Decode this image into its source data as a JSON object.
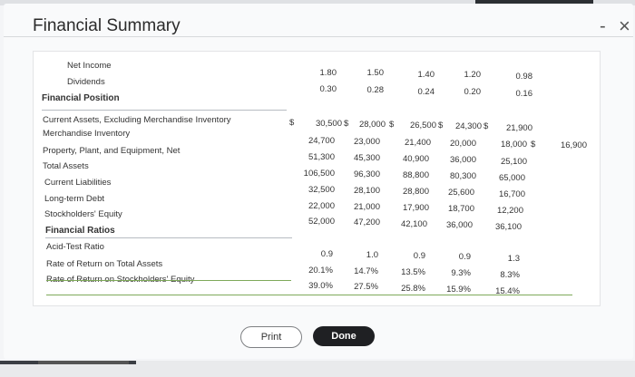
{
  "window": {
    "title": "Financial Summary",
    "minimize_label": "-",
    "close_label": "×"
  },
  "rows": [
    {
      "label": "Net Income",
      "values": [
        "1.80",
        "1.50",
        "1.40",
        "1.20",
        "0.98"
      ]
    },
    {
      "label": "Dividends",
      "values": [
        "0.30",
        "0.28",
        "0.24",
        "0.20",
        "0.16"
      ]
    },
    {
      "label": "Financial Position",
      "values": []
    },
    {
      "label": "Current Assets, Excluding Merchandise Inventory",
      "values": [
        "30,500",
        "28,000",
        "26,500",
        "24,300",
        "21,900"
      ]
    },
    {
      "label": "Merchandise Inventory",
      "values": [
        "24,700",
        "23,000",
        "21,400",
        "20,000",
        "18,000",
        "16,900"
      ]
    },
    {
      "label": "Property, Plant, and Equipment, Net",
      "values": [
        "51,300",
        "45,300",
        "40,900",
        "36,000",
        "25,100"
      ]
    },
    {
      "label": "Total Assets",
      "values": [
        "106,500",
        "96,300",
        "88,800",
        "80,300",
        "65,000"
      ]
    },
    {
      "label": "Current Liabilities",
      "values": [
        "32,500",
        "28,100",
        "28,800",
        "25,600",
        "16,700"
      ]
    },
    {
      "label": "Long-term Debt",
      "values": [
        "22,000",
        "21,000",
        "17,900",
        "18,700",
        "12,200"
      ]
    },
    {
      "label": "Stockholders' Equity",
      "values": [
        "52,000",
        "47,200",
        "42,100",
        "36,000",
        "36,100"
      ]
    },
    {
      "label": "Financial Ratios",
      "values": []
    },
    {
      "label": "Acid-Test Ratio",
      "values": [
        "0.9",
        "1.0",
        "0.9",
        "0.9",
        "1.3"
      ]
    },
    {
      "label": "Rate of Return on Total Assets",
      "values": [
        "20.1%",
        "14.7%",
        "13.5%",
        "9.3%",
        "8.3%"
      ]
    },
    {
      "label": "Rate of Return on Stockholders' Equity",
      "values": [
        "39.0%",
        "27.5%",
        "25.8%",
        "15.9%",
        "15.4%"
      ]
    }
  ],
  "currency_symbol": "$",
  "buttons": {
    "print": "Print",
    "done": "Done"
  }
}
